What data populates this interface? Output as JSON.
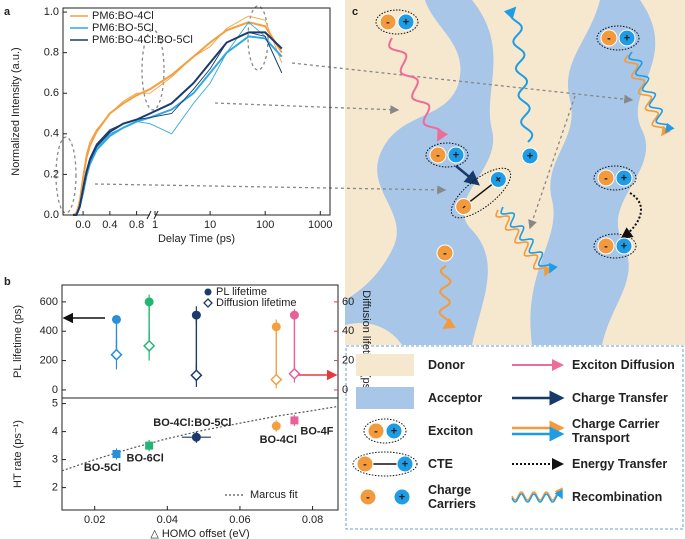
{
  "panel_labels": [
    "a",
    "b",
    "c"
  ],
  "charges": [
    "-",
    "+"
  ],
  "legend_c": [
    "Donor",
    "Acceptor",
    "Exciton",
    "CTE",
    "Charge Carriers",
    "Exciton Diffusion",
    "Charge Transfer",
    "Charge Carrier Transport",
    "Energy Transfer",
    "Recombination"
  ],
  "chart_data": [
    {
      "type": "line",
      "xlabel": "Delay Time (ps)",
      "ylabel": "Normalized Intensity (a.u.)",
      "xscale": "linear-log",
      "xbreak": 1,
      "xlim": [
        -0.3,
        1500
      ],
      "ylim": [
        0,
        1.02
      ],
      "xticks": [
        {
          "value": 0,
          "label": "0.0"
        },
        {
          "value": 0.4,
          "label": "0.4"
        },
        {
          "value": 0.8,
          "label": "0.8"
        },
        1,
        10,
        100,
        1000
      ],
      "yticks": [
        {
          "value": 0,
          "label": "0.0"
        },
        {
          "value": 0.2,
          "label": "0.2"
        },
        {
          "value": 0.4,
          "label": "0.4"
        },
        {
          "value": 0.6,
          "label": "0.6"
        },
        {
          "value": 0.8,
          "label": "0.8"
        },
        {
          "value": 1,
          "label": "1.0"
        }
      ],
      "x": [
        -0.15,
        -0.1,
        -0.05,
        0,
        0.05,
        0.1,
        0.2,
        0.4,
        0.6,
        0.8,
        1,
        2,
        5,
        10,
        20,
        50,
        100,
        200
      ],
      "series": [
        {
          "name": "PM6:BO-4Cl",
          "color": "#f5a040",
          "values": [
            0,
            0.01,
            0.08,
            0.2,
            0.3,
            0.36,
            0.42,
            0.5,
            0.56,
            0.6,
            0.6,
            0.68,
            0.78,
            0.83,
            0.92,
            0.98,
            0.96,
            0.75
          ],
          "fit_values": [
            0,
            0.01,
            0.06,
            0.18,
            0.28,
            0.34,
            0.41,
            0.5,
            0.55,
            0.59,
            0.62,
            0.69,
            0.78,
            0.85,
            0.91,
            0.95,
            0.93,
            0.8
          ]
        },
        {
          "name": "PM6:BO-5Cl",
          "color": "#30a8e0",
          "values": [
            0,
            0,
            0.05,
            0.12,
            0.2,
            0.26,
            0.33,
            0.4,
            0.43,
            0.46,
            0.45,
            0.4,
            0.55,
            0.65,
            0.8,
            0.95,
            0.88,
            0.7
          ],
          "fit_values": [
            0,
            0,
            0.04,
            0.11,
            0.19,
            0.25,
            0.32,
            0.39,
            0.43,
            0.46,
            0.48,
            0.52,
            0.6,
            0.7,
            0.8,
            0.88,
            0.87,
            0.78
          ]
        },
        {
          "name": "PM6:BO-4Cl:BO-5Cl",
          "color": "#1a3a6e",
          "values": [
            0,
            0,
            0.05,
            0.14,
            0.22,
            0.28,
            0.35,
            0.42,
            0.45,
            0.47,
            0.48,
            0.5,
            0.62,
            0.72,
            0.85,
            0.9,
            0.88,
            0.7
          ],
          "fit_values": [
            0,
            0,
            0.04,
            0.13,
            0.21,
            0.27,
            0.34,
            0.41,
            0.45,
            0.47,
            0.5,
            0.55,
            0.65,
            0.75,
            0.85,
            0.9,
            0.9,
            0.82
          ]
        }
      ]
    },
    {
      "type": "scatter",
      "ylabel": "PL lifetime (ps)",
      "y2label": "Diffusion lifetime (ps)",
      "xlim": [
        0.011,
        0.087
      ],
      "ylim": [
        -55,
        715
      ],
      "yticks": [
        0,
        200,
        400,
        600
      ],
      "y2lim": [
        -5.5,
        71.5
      ],
      "y2ticks": [
        0,
        20,
        40,
        60
      ],
      "x": [
        0.026,
        0.035,
        0.048,
        0.07,
        0.075
      ],
      "point_colors": [
        "#2a8fd8",
        "#22b573",
        "#1a3a6e",
        "#f5a040",
        "#e8609a"
      ],
      "series": [
        {
          "name": "PL lifetime",
          "color": "#222222",
          "marker": "circle",
          "values": [
            480,
            600,
            510,
            430,
            510
          ],
          "errors": [
            30,
            50,
            60,
            50,
            40
          ]
        },
        {
          "name": "Diffusion lifetime",
          "color": "#e8383d",
          "marker": "diamond",
          "axis": "y2",
          "values": [
            24,
            30,
            10,
            7,
            11
          ],
          "errors": [
            10,
            10,
            8,
            6,
            6
          ]
        }
      ]
    },
    {
      "type": "scatter",
      "ylabel": "HT rate (ps⁻¹)",
      "xlabel": "△ HOMO offset (eV)",
      "xlim": [
        0.011,
        0.087
      ],
      "ylim": [
        1.2,
        5.2
      ],
      "yticks": [
        2,
        3,
        4,
        5
      ],
      "xticks": [
        0.02,
        0.04,
        0.06,
        0.08
      ],
      "x": [
        0.026,
        0.035,
        0.048,
        0.07,
        0.075
      ],
      "point_colors": [
        "#2a8fd8",
        "#22b573",
        "#1a3a6e",
        "#f5a040",
        "#e8609a"
      ],
      "markers": [
        "square",
        "square",
        "circle",
        "circle",
        "square"
      ],
      "point_labels": [
        "BO-5Cl",
        "BO-6Cl",
        "BO-4Cl:BO-5Cl",
        "BO-4Cl",
        "BO-4F"
      ],
      "values": [
        3.2,
        3.5,
        3.8,
        4.2,
        4.4
      ],
      "errors": [
        0.2,
        0.2,
        0.2,
        0.2,
        0.2
      ],
      "x_errors": [
        0.001,
        0.001,
        0.004,
        0.001,
        0.001
      ],
      "fit": {
        "name": "Marcus fit",
        "x": [
          0.011,
          0.02,
          0.03,
          0.04,
          0.05,
          0.06,
          0.07,
          0.08,
          0.087
        ],
        "values": [
          2.6,
          3.0,
          3.4,
          3.75,
          4.05,
          4.3,
          4.55,
          4.75,
          4.9
        ]
      }
    }
  ]
}
